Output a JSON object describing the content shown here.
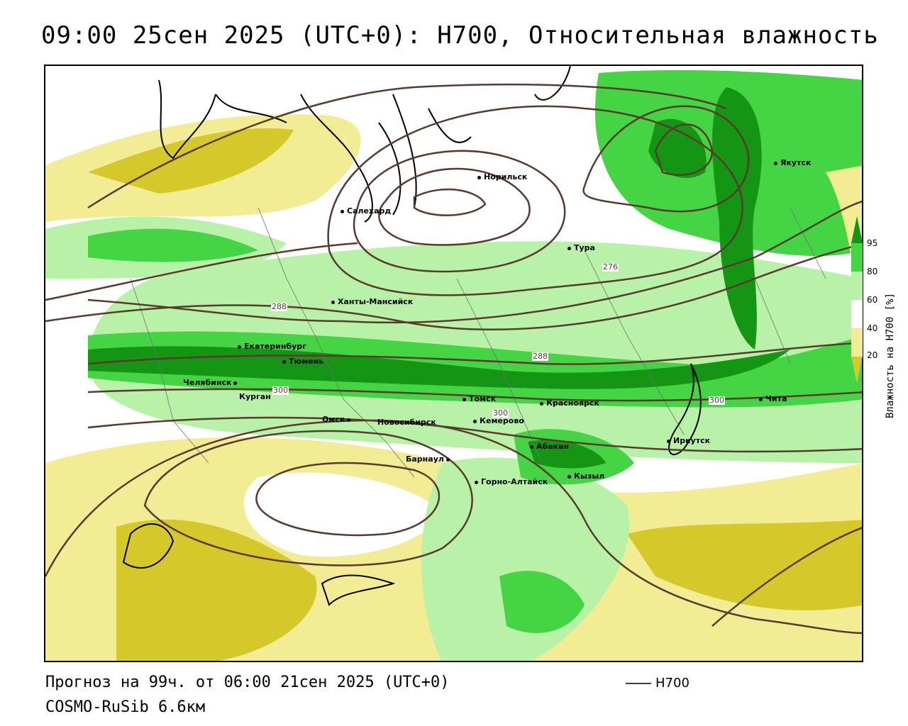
{
  "title": "09:00 25сен 2025 (UTC+0): H700, Относительная влажность",
  "footer": {
    "forecast": "Прогноз на 99ч. от 06:00 21сен 2025 (UTC+0)",
    "model": "COSMO-RuSib 6.6км"
  },
  "legend": {
    "line_label": "H700",
    "line_color": "#5a3a2e"
  },
  "colorbar": {
    "title": "Влажность на H700 [%]",
    "ticks": [
      "95",
      "80",
      "60",
      "40",
      "20"
    ],
    "colors": {
      "very_dry": "#d4c82a",
      "dry": "#f2ec94",
      "mid": "#ffffff",
      "moist": "#b8f2a8",
      "wet": "#44d444",
      "very_wet": "#149614"
    }
  },
  "cities": [
    {
      "name": "Норильск"
    },
    {
      "name": "Якутск"
    },
    {
      "name": "Салехард"
    },
    {
      "name": "Тура"
    },
    {
      "name": "Ханты-Мансийск"
    },
    {
      "name": "Екатеринбург"
    },
    {
      "name": "Тюмень"
    },
    {
      "name": "Челябинск"
    },
    {
      "name": "Курган"
    },
    {
      "name": "Омск"
    },
    {
      "name": "Новосибирск"
    },
    {
      "name": "Томск"
    },
    {
      "name": "Кемерово"
    },
    {
      "name": "Красноярск"
    },
    {
      "name": "Барнаул"
    },
    {
      "name": "Абакан"
    },
    {
      "name": "Горно-Алтайск"
    },
    {
      "name": "Кызыл"
    },
    {
      "name": "Иркутск"
    },
    {
      "name": "Чита"
    }
  ],
  "isolines": [
    "276",
    "288",
    "288",
    "300",
    "300",
    "300"
  ]
}
